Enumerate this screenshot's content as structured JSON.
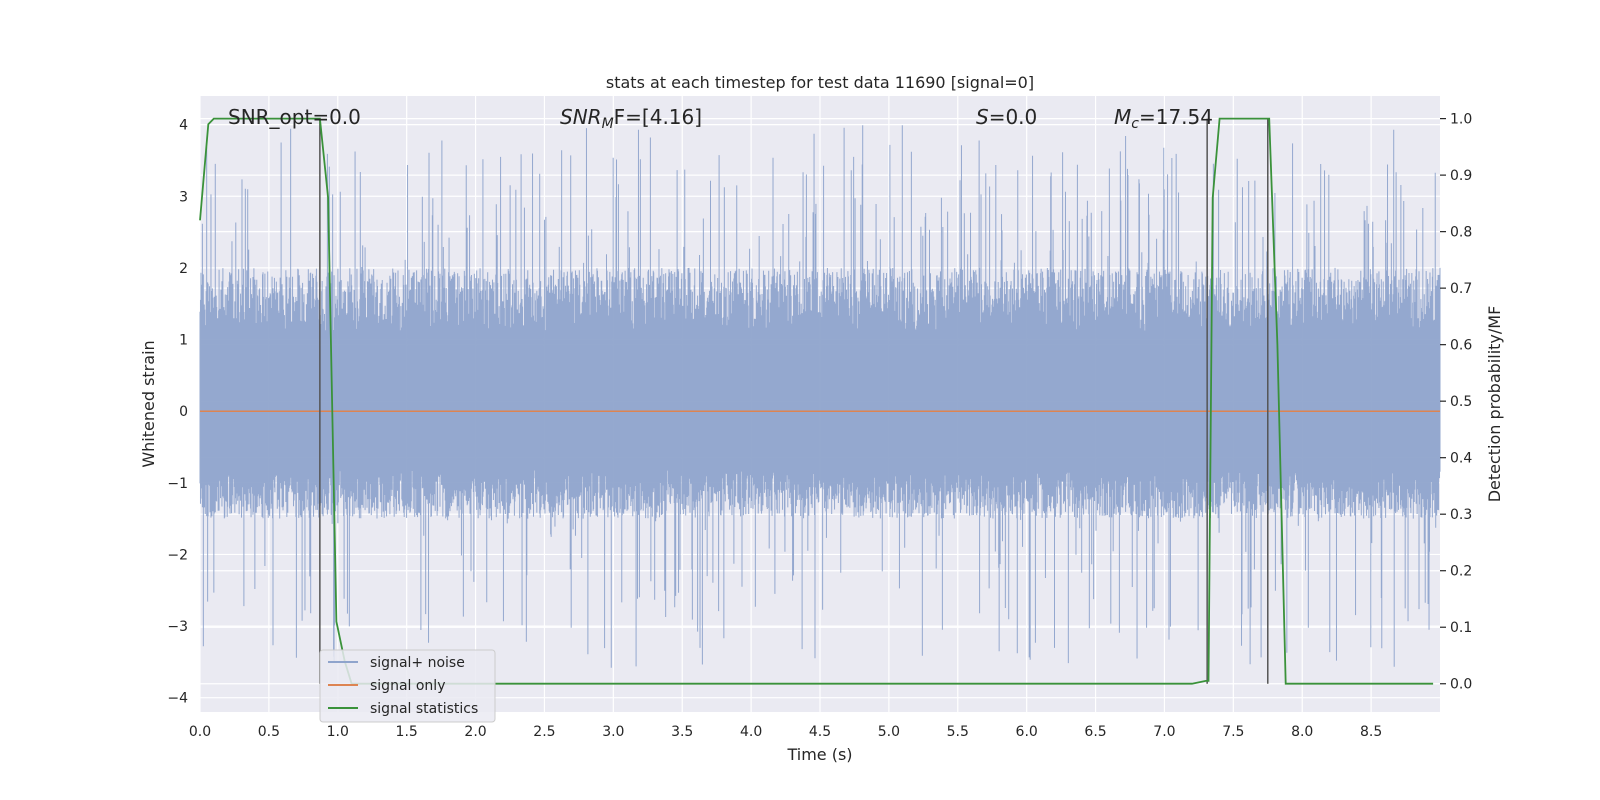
{
  "chart_data": {
    "type": "line",
    "title": "stats at each timestep for test data 11690 [signal=0]",
    "xlabel": "Time (s)",
    "ylabel_left": "Whitened strain",
    "ylabel_right": "Detection probability/MF",
    "xlim": [
      0.0,
      9.0
    ],
    "ylim_left": [
      -4.2,
      4.4
    ],
    "ylim_right": [
      -0.05,
      1.04
    ],
    "grid": true,
    "legend_position": "lower-left",
    "x_ticks": [
      0.0,
      0.5,
      1.0,
      1.5,
      2.0,
      2.5,
      3.0,
      3.5,
      4.0,
      4.5,
      5.0,
      5.5,
      6.0,
      6.5,
      7.0,
      7.5,
      8.0,
      8.5
    ],
    "x_tick_labels": [
      "0.0",
      "0.5",
      "1.0",
      "1.5",
      "2.0",
      "2.5",
      "3.0",
      "3.5",
      "4.0",
      "4.5",
      "5.0",
      "5.5",
      "6.0",
      "6.5",
      "7.0",
      "7.5",
      "8.0",
      "8.5"
    ],
    "y_left_ticks": [
      4,
      3,
      2,
      1,
      0,
      -1,
      -2,
      -3,
      -4
    ],
    "y_left_tick_labels": [
      "4",
      "3",
      "2",
      "1",
      "0",
      "−1",
      "−2",
      "−3",
      "−4"
    ],
    "y_right_ticks": [
      1.0,
      0.9,
      0.8,
      0.7,
      0.6,
      0.5,
      0.4,
      0.3,
      0.2,
      0.1,
      0.0
    ],
    "y_right_tick_labels": [
      "1.0",
      "0.9",
      "0.8",
      "0.7",
      "0.6",
      "0.5",
      "0.4",
      "0.3",
      "0.2",
      "0.1",
      "0.0"
    ],
    "annotations": {
      "snr_opt": "SNR_opt=0.0",
      "snr_mf_base": "SNR",
      "snr_mf_sub": "M",
      "snr_mf_rest": "F=[4.16]",
      "s_italic": "S",
      "s_rest": "=0.0",
      "mc_base": "M",
      "mc_sub": "c",
      "mc_rest": "=17.54"
    },
    "series": [
      {
        "name": "signal+ noise",
        "color": "#8fa4cc",
        "axis": "left",
        "kind": "noise",
        "x_range": [
          0.0,
          9.0
        ],
        "envelope_typical": [
          -1.5,
          2.0
        ],
        "envelope_extreme": [
          -3.6,
          4.0
        ]
      },
      {
        "name": "signal only",
        "color": "#dd8452",
        "axis": "left",
        "x": [
          0.0,
          9.0
        ],
        "y": [
          0.0,
          0.0
        ]
      },
      {
        "name": "signal statistics",
        "color": "#3a923a",
        "axis": "right",
        "x": [
          0.0,
          0.06,
          0.1,
          0.2,
          0.5,
          0.8,
          0.87,
          0.93,
          0.99,
          1.05,
          1.1,
          7.2,
          7.3,
          7.32,
          7.35,
          7.4,
          7.5,
          7.7,
          7.76,
          7.82,
          7.88,
          7.95,
          8.95
        ],
        "y": [
          0.82,
          0.99,
          1.0,
          1.0,
          1.0,
          1.0,
          1.0,
          0.86,
          0.11,
          0.04,
          0.0,
          0.0,
          0.005,
          0.005,
          0.86,
          1.0,
          1.0,
          1.0,
          1.0,
          0.6,
          0.0,
          0.0,
          0.0
        ]
      }
    ],
    "vertical_lines": [
      0.87,
      7.31,
      7.75
    ],
    "vertical_line_color": "#555555"
  }
}
